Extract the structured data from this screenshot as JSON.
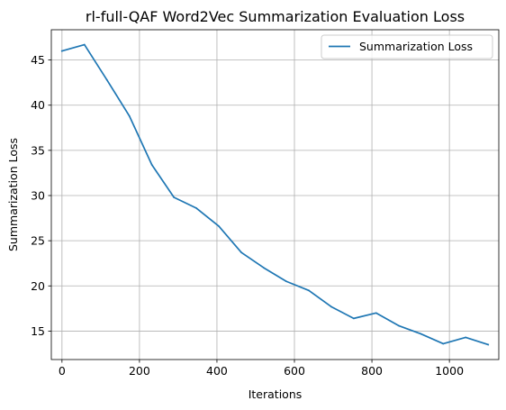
{
  "chart_data": {
    "type": "line",
    "title": "rl-full-QAF Word2Vec Summarization Evaluation Loss",
    "xlabel": "Iterations",
    "ylabel": "Summarization Loss",
    "xlim": [
      -27.5,
      1127.5
    ],
    "ylim": [
      11.85,
      48.35
    ],
    "xticks": [
      0,
      200,
      400,
      600,
      800,
      1000
    ],
    "yticks": [
      15,
      20,
      25,
      30,
      35,
      40,
      45
    ],
    "grid": true,
    "legend_position": "top-right",
    "series": [
      {
        "name": "Summarization Loss",
        "color": "#1f77b4",
        "x": [
          0,
          58,
          116,
          174,
          232,
          289,
          347,
          405,
          463,
          521,
          579,
          637,
          695,
          753,
          811,
          869,
          926,
          984,
          1042,
          1100
        ],
        "y": [
          46.0,
          46.7,
          42.8,
          38.8,
          33.4,
          29.8,
          28.6,
          26.6,
          23.7,
          22.0,
          20.5,
          19.5,
          17.7,
          16.4,
          17.0,
          15.6,
          14.7,
          13.6,
          14.3,
          13.5
        ]
      }
    ]
  }
}
